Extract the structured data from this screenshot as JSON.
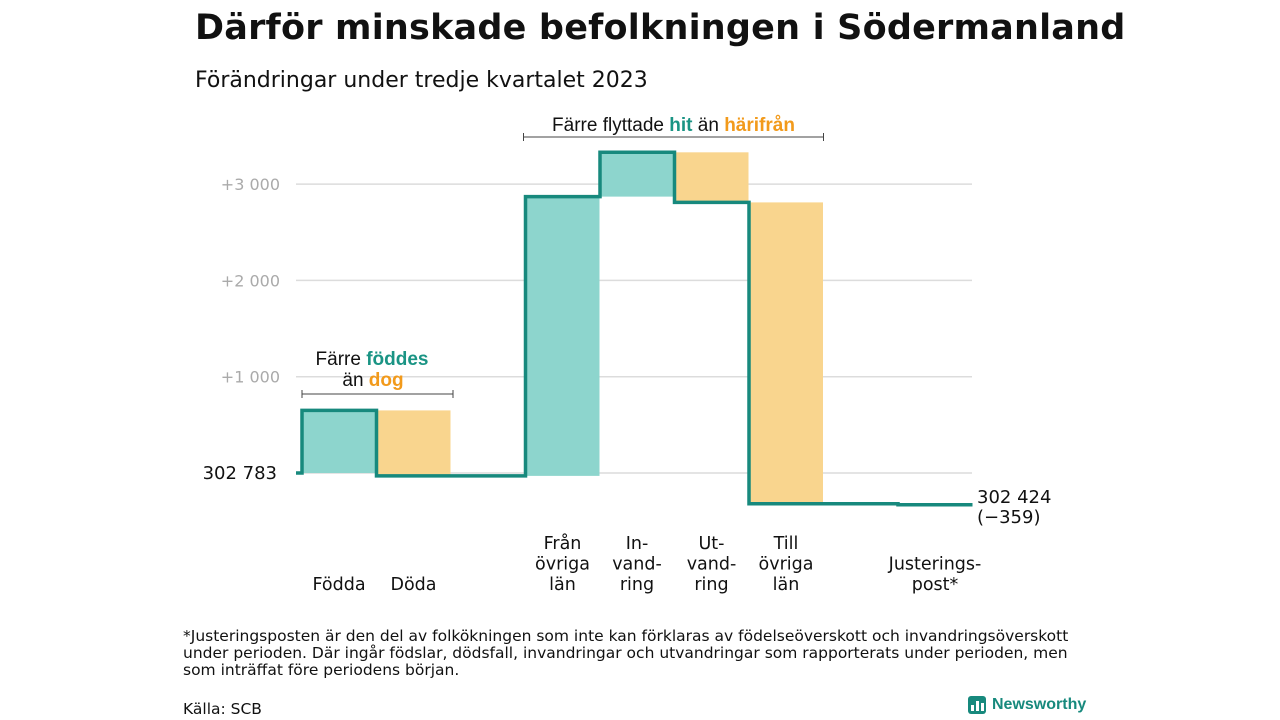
{
  "title": "Därför minskade befolkningen i Södermanland",
  "subtitle": "Förändringar under tredje kvartalet 2023",
  "footnote": "*Justeringsposten är den del av folkökningen som inte kan förklaras av födelseöverskott och invandringsöverskott under perioden. Där ingår födslar, dödsfall, invandringar och utvandringar som rapporterats under perioden, men som inträffat före periodens början.",
  "source": "Källa: SCB",
  "logo_text": "Newsworthy",
  "colors": {
    "increase": "#8dd5cd",
    "decrease": "#f9d58e",
    "line": "#17897d",
    "teal_text": "#1a9484",
    "orange_text": "#f29a1b",
    "grid": "#dcdcdc",
    "tick_text": "#aaaaaa"
  },
  "annotations": {
    "birth_death": {
      "l1_pre": "Färre ",
      "l1_hi": "föddes",
      "l2_pre": "än ",
      "l2_hi": "dog"
    },
    "migration": {
      "pre": "Färre flyttade ",
      "hi1": "hit",
      "mid": " än ",
      "hi2": "härifrån"
    }
  },
  "chart_data": {
    "type": "waterfall",
    "title": "Därför minskade befolkningen i Södermanland",
    "subtitle": "Förändringar under tredje kvartalet 2023",
    "start_label": "302 783",
    "start_value": 302783,
    "end_label": "302 424",
    "end_change_label": "(−359)",
    "end_value": 302424,
    "net_change": -359,
    "y_ticks": [
      {
        "value": 1000,
        "label": "+1 000"
      },
      {
        "value": 2000,
        "label": "+2 000"
      },
      {
        "value": 3000,
        "label": "+3 000"
      }
    ],
    "ylim": [
      -400,
      3350
    ],
    "steps": [
      {
        "label": [
          "Födda"
        ],
        "value": 650,
        "kind": "increase"
      },
      {
        "label": [
          "Döda"
        ],
        "value": -680,
        "kind": "decrease"
      },
      {
        "label": [],
        "value": 0,
        "kind": "none"
      },
      {
        "label": [
          "Från",
          "övriga",
          "län"
        ],
        "value": 2900,
        "kind": "increase"
      },
      {
        "label": [
          "In-",
          "vand-",
          "ring"
        ],
        "value": 460,
        "kind": "increase"
      },
      {
        "label": [
          "Ut-",
          "vand-",
          "ring"
        ],
        "value": -520,
        "kind": "decrease"
      },
      {
        "label": [
          "Till",
          "övriga",
          "län"
        ],
        "value": -3130,
        "kind": "decrease"
      },
      {
        "label": [],
        "value": 0,
        "kind": "none"
      },
      {
        "label": [
          "Justerings-",
          "post*"
        ],
        "value": -10,
        "kind": "decrease"
      }
    ]
  }
}
